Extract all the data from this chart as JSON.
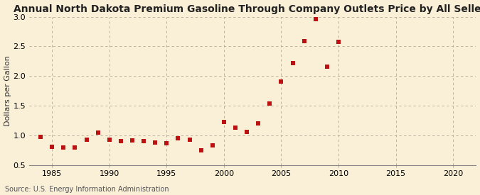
{
  "title": "Annual North Dakota Premium Gasoline Through Company Outlets Price by All Sellers",
  "ylabel": "Dollars per Gallon",
  "source": "Source: U.S. Energy Information Administration",
  "years": [
    1984,
    1985,
    1986,
    1987,
    1988,
    1989,
    1990,
    1991,
    1992,
    1993,
    1994,
    1995,
    1996,
    1997,
    1998,
    1999,
    2000,
    2001,
    2002,
    2003,
    2004,
    2005,
    2006,
    2007,
    2008,
    2009,
    2010
  ],
  "values": [
    0.97,
    0.8,
    0.79,
    0.79,
    0.93,
    1.04,
    0.92,
    0.9,
    0.91,
    0.9,
    0.88,
    0.86,
    0.95,
    0.93,
    0.75,
    0.83,
    1.22,
    1.13,
    1.06,
    1.2,
    1.53,
    1.9,
    2.22,
    2.59,
    2.96,
    2.16,
    2.58
  ],
  "marker_color": "#bb1111",
  "marker_size": 18,
  "xlim": [
    1983,
    2022
  ],
  "ylim": [
    0.5,
    3.0
  ],
  "xticks": [
    1985,
    1990,
    1995,
    2000,
    2005,
    2010,
    2015,
    2020
  ],
  "yticks": [
    0.5,
    1.0,
    1.5,
    2.0,
    2.5,
    3.0
  ],
  "background_color": "#faefd7",
  "grid_h_color": "#b0a898",
  "grid_v_color": "#b0a898",
  "title_fontsize": 10,
  "label_fontsize": 8,
  "tick_fontsize": 8,
  "source_fontsize": 7
}
